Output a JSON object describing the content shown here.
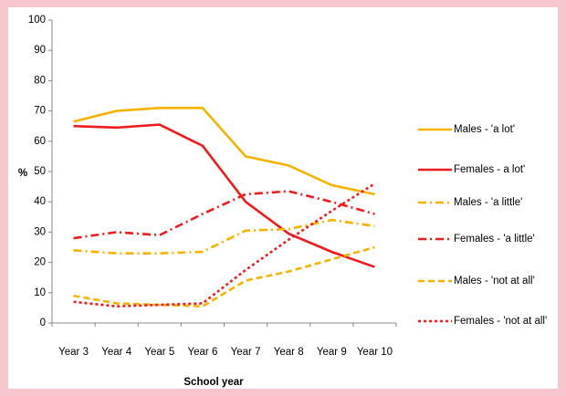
{
  "chart_data": {
    "type": "line",
    "xlabel": "School year",
    "ylabel": "%",
    "categories": [
      "Year 3",
      "Year 4",
      "Year 5",
      "Year 6",
      "Year 7",
      "Year 8",
      "Year 9",
      "Year 10"
    ],
    "ylim": [
      0,
      100
    ],
    "yticks": [
      0,
      10,
      20,
      30,
      40,
      50,
      60,
      70,
      80,
      90,
      100
    ],
    "legend": "right",
    "series": [
      {
        "name": "Males - 'a lot'",
        "color": "#f5b300",
        "style": "solid",
        "values": [
          66.5,
          70,
          71,
          71,
          55,
          52,
          45.5,
          42.5
        ]
      },
      {
        "name": "Females - a lot'",
        "color": "#ee1c1c",
        "style": "solid",
        "values": [
          65,
          64.5,
          65.5,
          58.5,
          40,
          29.5,
          23.5,
          18.5
        ]
      },
      {
        "name": "Males - 'a little'",
        "color": "#f5b300",
        "style": "dashdot",
        "values": [
          24,
          23,
          23,
          23.5,
          30.5,
          31,
          34,
          32
        ]
      },
      {
        "name": "Females - 'a little'",
        "color": "#ee1c1c",
        "style": "dashdot",
        "values": [
          28,
          30,
          29,
          36,
          42.5,
          43.5,
          40,
          36
        ]
      },
      {
        "name": "Males - 'not at all'",
        "color": "#f5b300",
        "style": "dash",
        "values": [
          9,
          6.5,
          6,
          5.5,
          14,
          17,
          21,
          25
        ]
      },
      {
        "name": "Females - 'not at all'",
        "color": "#ee1c1c",
        "style": "dot",
        "values": [
          7,
          5.5,
          6,
          6.5,
          17.5,
          27.5,
          37,
          46
        ]
      }
    ]
  }
}
